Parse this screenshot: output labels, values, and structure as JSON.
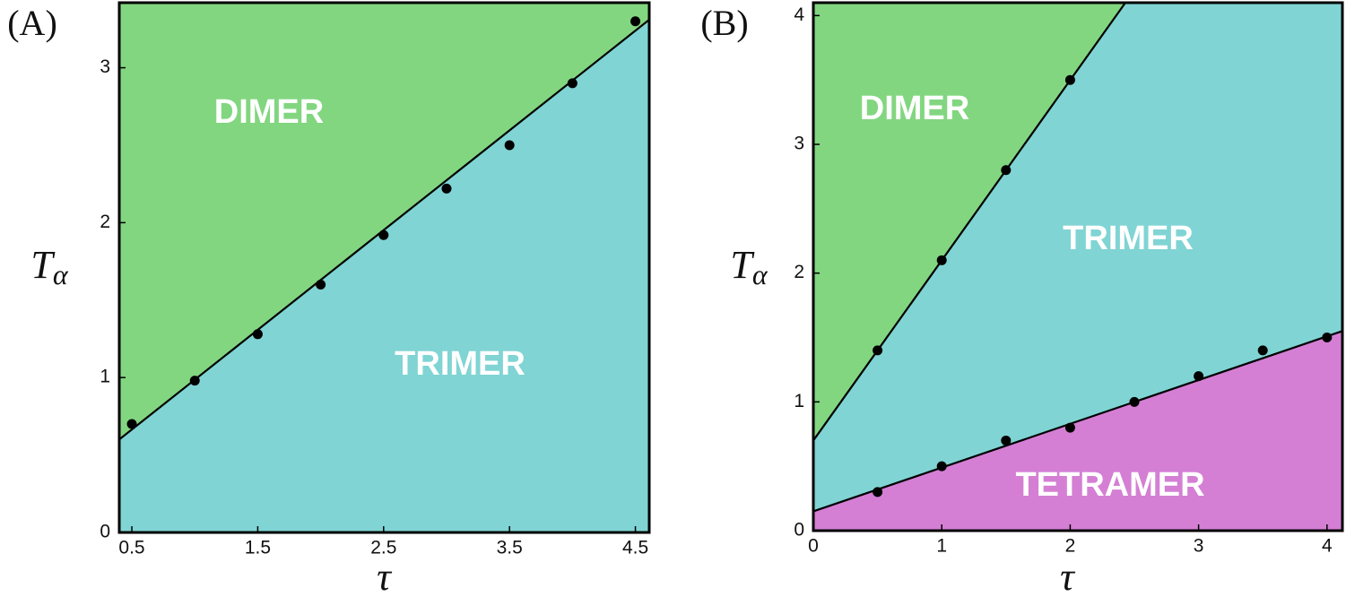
{
  "chart_data": [
    {
      "type": "phase",
      "panel_label": "(A)",
      "xlabel": "τ",
      "ylabel": "T",
      "ylabel_sub": "α",
      "xlim": [
        0.4,
        4.61
      ],
      "ylim": [
        0,
        3.42
      ],
      "xticks": [
        0.5,
        1.5,
        2.5,
        3.5,
        4.5
      ],
      "yticks": [
        0,
        1,
        2,
        3
      ],
      "regions": [
        {
          "name": "DIMER",
          "color": "#82d680"
        },
        {
          "name": "TRIMER",
          "color": "#80d4d4"
        }
      ],
      "lines": [
        {
          "x": [
            0.4,
            4.61
          ],
          "y": [
            0.6,
            3.31
          ],
          "color": "#000000"
        }
      ],
      "series": [
        {
          "color": "#000000",
          "x": [
            0.5,
            1,
            1.5,
            2,
            2.5,
            3,
            3.5,
            4,
            4.5
          ],
          "y": [
            0.7,
            0.98,
            1.28,
            1.6,
            1.92,
            2.22,
            2.5,
            2.9,
            3.3
          ]
        }
      ]
    },
    {
      "type": "phase",
      "panel_label": "(B)",
      "xlabel": "τ",
      "ylabel": "T",
      "ylabel_sub": "α",
      "xlim": [
        0,
        4.12
      ],
      "ylim": [
        0,
        4.1
      ],
      "xticks": [
        0,
        1,
        2,
        3,
        4
      ],
      "yticks": [
        0,
        1,
        2,
        3,
        4
      ],
      "regions": [
        {
          "name": "DIMER",
          "color": "#82d680"
        },
        {
          "name": "TRIMER",
          "color": "#80d4d4"
        },
        {
          "name": "TETRAMER",
          "color": "#d47fd4"
        }
      ],
      "lines": [
        {
          "x": [
            0,
            2.43
          ],
          "y": [
            0.7,
            4.1
          ],
          "color": "#000000"
        },
        {
          "x": [
            0,
            4.12
          ],
          "y": [
            0.15,
            1.55
          ],
          "color": "#000000"
        }
      ],
      "series": [
        {
          "color": "#000000",
          "x": [
            0.5,
            1,
            1.5,
            2
          ],
          "y": [
            1.4,
            2.1,
            2.8,
            3.5
          ]
        },
        {
          "color": "#000000",
          "x": [
            0.5,
            1,
            1.5,
            2,
            2.5,
            3,
            3.5,
            4
          ],
          "y": [
            0.3,
            0.5,
            0.7,
            0.8,
            1.0,
            1.2,
            1.4,
            1.5
          ]
        }
      ]
    }
  ]
}
